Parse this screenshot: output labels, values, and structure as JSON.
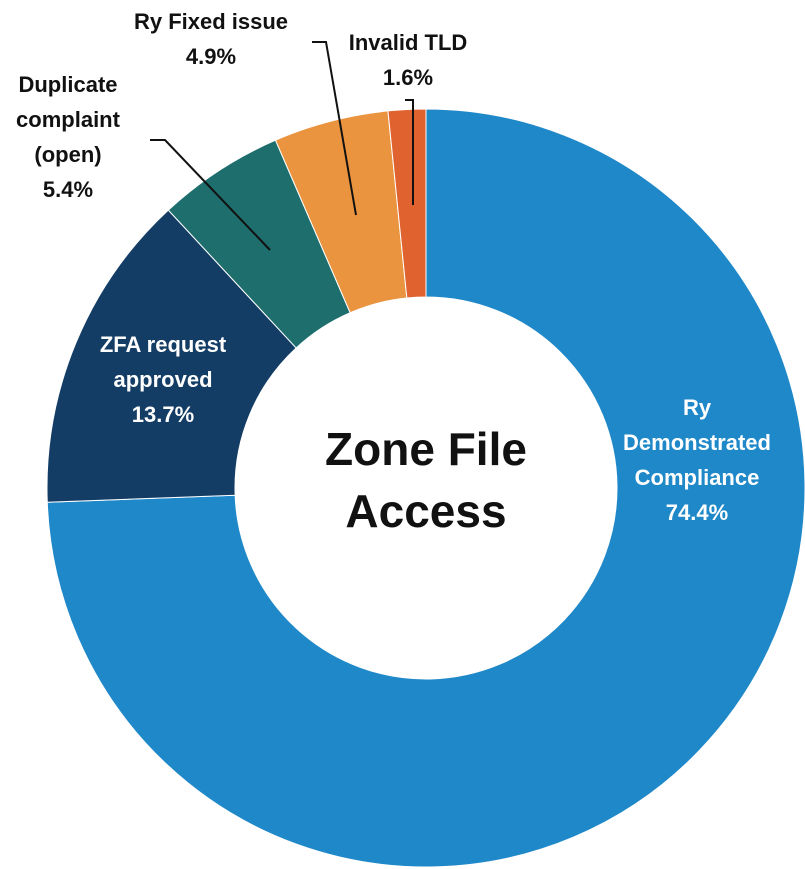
{
  "chart_data": {
    "type": "donut",
    "title": "Zone File Access",
    "categories": [
      "Ry Demonstrated Compliance",
      "ZFA request approved",
      "Duplicate complaint (open)",
      "Ry Fixed issue",
      "Invalid TLD"
    ],
    "values": [
      74.4,
      13.7,
      5.4,
      4.9,
      1.6
    ],
    "value_labels": [
      "74.4%",
      "13.7%",
      "5.4%",
      "4.9%",
      "1.6%"
    ],
    "colors": [
      "#1f88c9",
      "#143d66",
      "#1e6e6e",
      "#ea9440",
      "#e0622f"
    ]
  }
}
